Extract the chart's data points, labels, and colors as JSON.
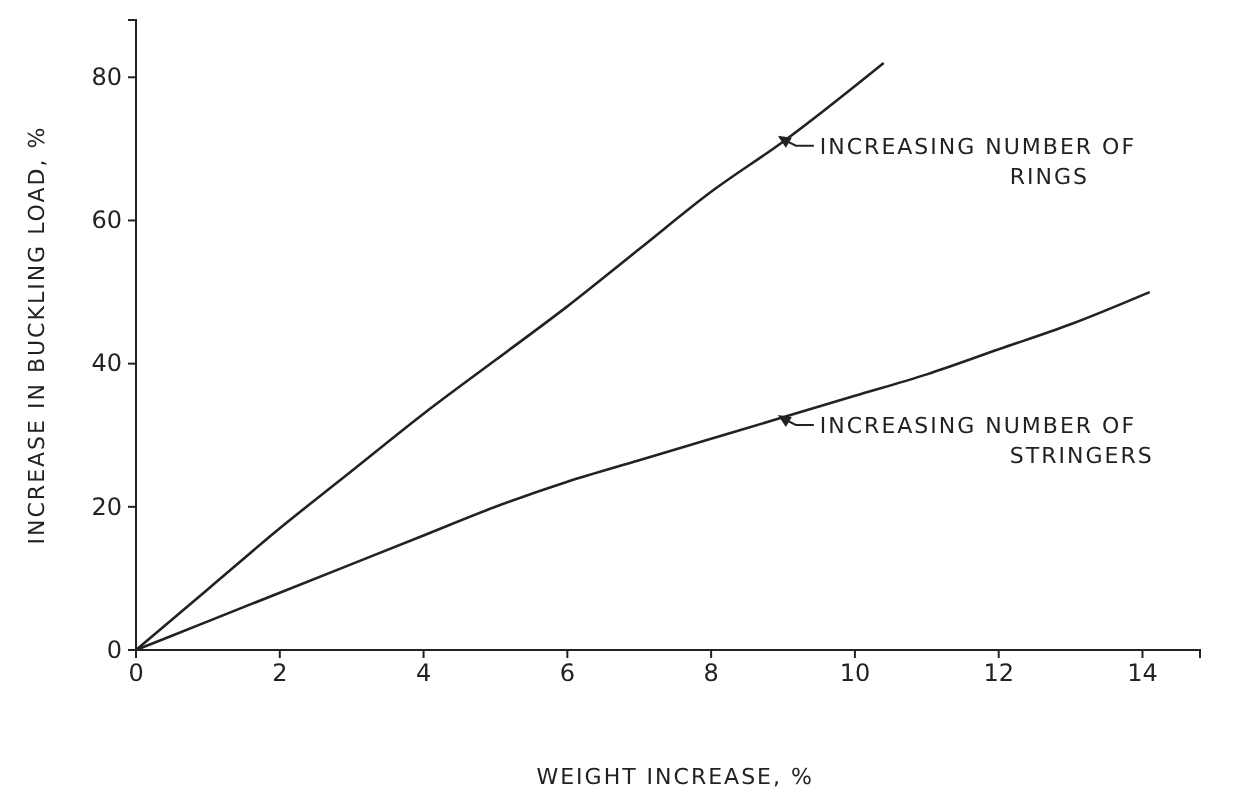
{
  "chart_data": {
    "type": "line",
    "xlabel": "WEIGHT INCREASE, %",
    "ylabel": "INCREASE IN BUCKLING LOAD, %",
    "xlim": [
      0,
      14.8
    ],
    "ylim": [
      0,
      88
    ],
    "xticks": [
      0,
      2,
      4,
      6,
      8,
      10,
      12,
      14
    ],
    "yticks": [
      0,
      20,
      40,
      60,
      80
    ],
    "series": [
      {
        "color": "#222222",
        "x": [
          0,
          1,
          2,
          3,
          4,
          5,
          6,
          7,
          8,
          9,
          10.4
        ],
        "values": [
          0,
          8.5,
          17,
          25,
          33,
          40.5,
          48,
          56,
          64,
          71,
          82
        ]
      },
      {
        "color": "#222222",
        "x": [
          0,
          1,
          2,
          3,
          4,
          5,
          6,
          7,
          8,
          9,
          10,
          11,
          12,
          13,
          14.1
        ],
        "values": [
          0,
          4,
          8,
          12,
          16,
          20,
          23.5,
          26.5,
          29.5,
          32.5,
          35.5,
          38.5,
          42,
          45.5,
          50
        ]
      }
    ],
    "annotations": [
      {
        "text": "INCREASING NUMBER OF\nRINGS",
        "x": 8.9,
        "y": 71
      },
      {
        "text": "INCREASING NUMBER OF\nSTRINGERS",
        "x": 8.9,
        "y": 32
      }
    ],
    "line_style": "solid",
    "marker": "none"
  }
}
